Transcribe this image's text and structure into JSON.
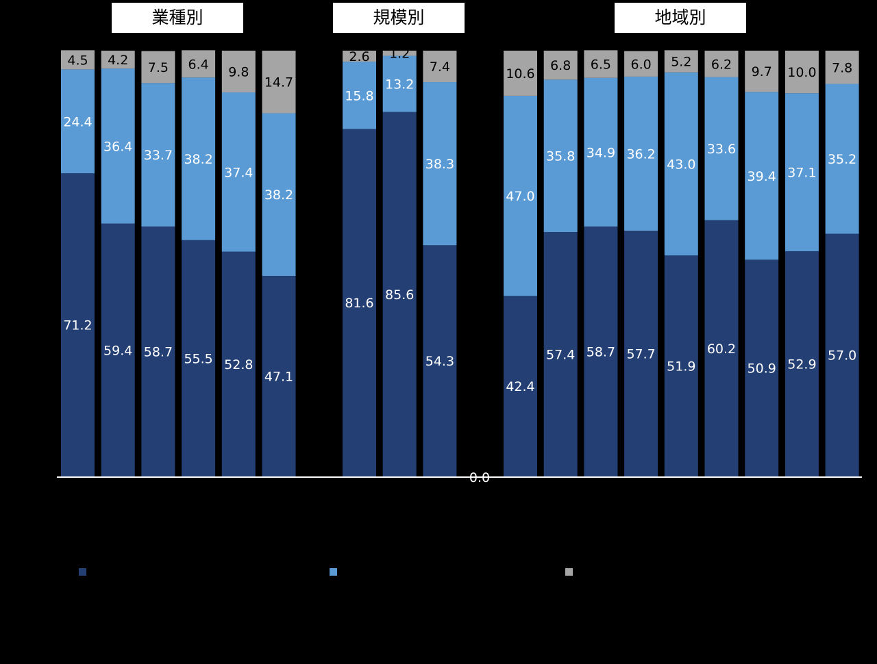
{
  "chart_data": {
    "type": "bar",
    "stacked": true,
    "groups": [
      {
        "title": "業種別",
        "bar_count": 6
      },
      {
        "title": "規模別",
        "bar_count": 3
      },
      {
        "title": "地域別",
        "bar_count": 9
      }
    ],
    "series": [
      {
        "name": "",
        "color": "#243f73",
        "values": [
          71.2,
          59.4,
          58.7,
          55.5,
          52.8,
          47.1,
          81.6,
          85.6,
          54.3,
          42.4,
          57.4,
          58.7,
          57.7,
          51.9,
          60.2,
          50.9,
          52.9,
          57.0
        ]
      },
      {
        "name": "",
        "color": "#5b9bd5",
        "values": [
          24.4,
          36.4,
          33.7,
          38.2,
          37.4,
          38.2,
          15.8,
          13.2,
          38.3,
          47.0,
          35.8,
          34.9,
          36.2,
          43.0,
          33.6,
          39.4,
          37.1,
          35.2
        ]
      },
      {
        "name": "",
        "color": "#a5a5a5",
        "values": [
          4.5,
          4.2,
          7.5,
          6.4,
          9.8,
          14.7,
          2.6,
          1.2,
          7.4,
          10.6,
          6.8,
          6.5,
          6.0,
          5.2,
          6.2,
          9.7,
          10.0,
          7.8
        ]
      }
    ],
    "ylim": [
      0,
      100
    ],
    "axis_label": "0.0",
    "label_color": "#ffffff",
    "label_color_light_series": "#000000",
    "legend": "bottom"
  }
}
